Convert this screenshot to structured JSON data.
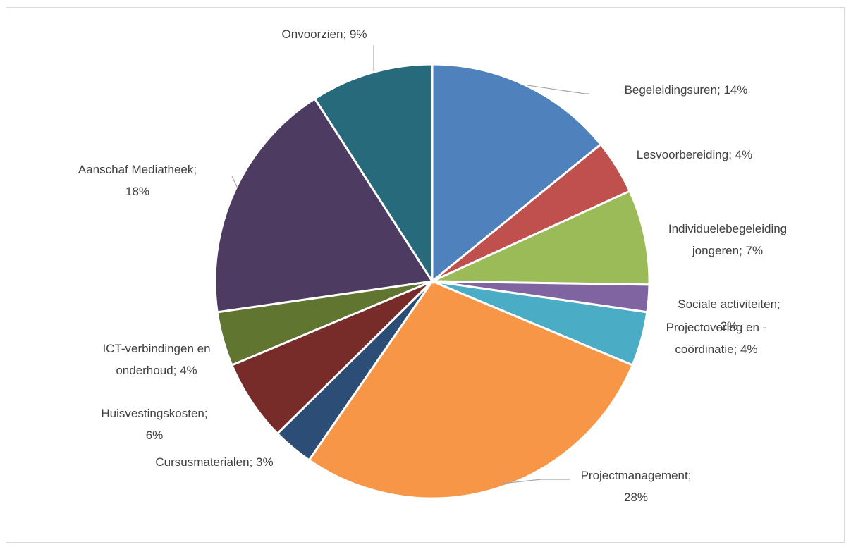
{
  "chart_data": {
    "type": "pie",
    "title": "",
    "slices": [
      {
        "name": "Begeleidingsuren",
        "label_lines": [
          "Begeleidingsuren; 14%"
        ],
        "value": 14,
        "color": "#4F81BD"
      },
      {
        "name": "Lesvoorbereiding",
        "label_lines": [
          "Lesvoorbereiding; 4%"
        ],
        "value": 4,
        "color": "#C0504D"
      },
      {
        "name": "Individuelebegeleiding jongeren",
        "label_lines": [
          "Individuelebegeleiding",
          "jongeren; 7%"
        ],
        "value": 7,
        "color": "#9BBB59"
      },
      {
        "name": "Sociale activiteiten",
        "label_lines": [
          "Sociale activiteiten;",
          "2%"
        ],
        "value": 2,
        "color": "#8064A2"
      },
      {
        "name": "Projectoverleg en -coördinatie",
        "label_lines": [
          "Projectoverleg en -",
          "coördinatie; 4%"
        ],
        "value": 4,
        "color": "#4BACC6"
      },
      {
        "name": "Projectmanagement",
        "label_lines": [
          "Projectmanagement;",
          "28%"
        ],
        "value": 28,
        "color": "#F79646"
      },
      {
        "name": "Cursusmaterialen",
        "label_lines": [
          "Cursusmaterialen; 3%"
        ],
        "value": 3,
        "color": "#2C4D75"
      },
      {
        "name": "Huisvestingskosten",
        "label_lines": [
          "Huisvestingskosten;",
          "6%"
        ],
        "value": 6,
        "color": "#772C2A"
      },
      {
        "name": "ICT-verbindingen en onderhoud",
        "label_lines": [
          "ICT-verbindingen en",
          "onderhoud; 4%"
        ],
        "value": 4,
        "color": "#5F7530"
      },
      {
        "name": "Aanschaf Mediatheek",
        "label_lines": [
          "Aanschaf Mediatheek;",
          "18%"
        ],
        "value": 18,
        "color": "#4D3B62"
      },
      {
        "name": "Onvoorzien",
        "label_lines": [
          "Onvoorzien; 9%"
        ],
        "value": 9,
        "color": "#276A7C"
      }
    ]
  }
}
